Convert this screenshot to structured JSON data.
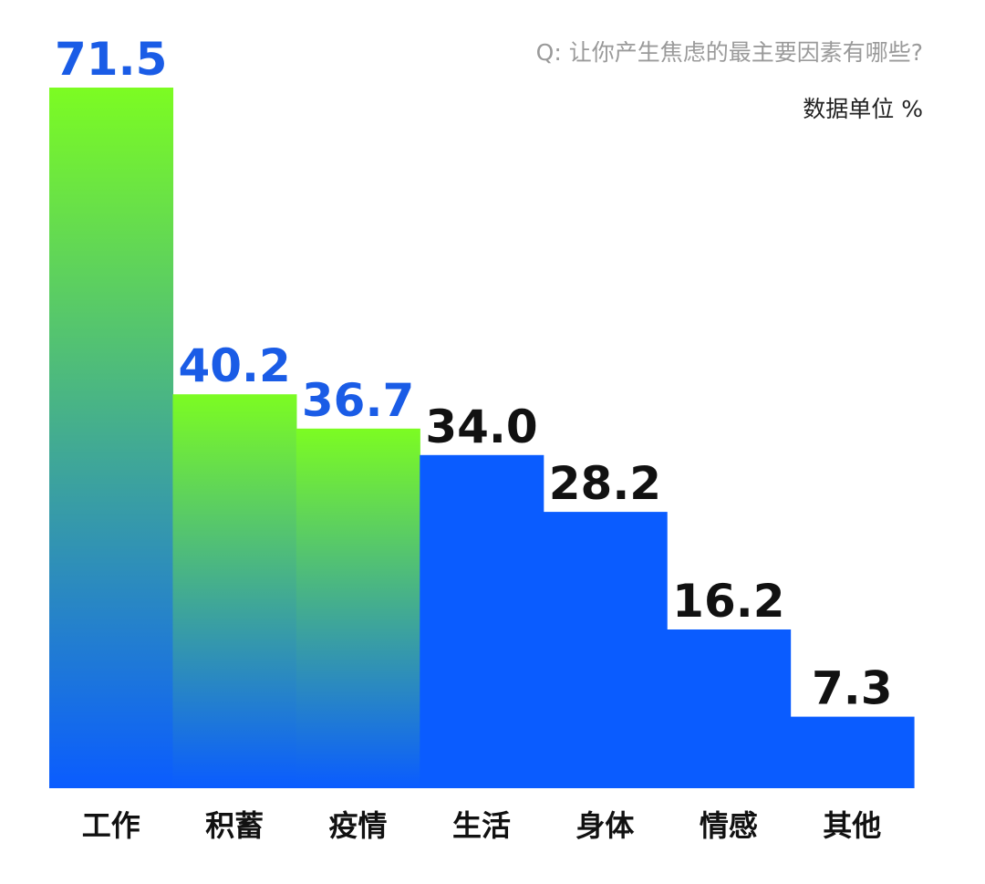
{
  "question": "Q: 让你产生焦虑的最主要因素有哪些?",
  "unit_label": "数据单位 %",
  "colors": {
    "gradient_top": "#7CFC22",
    "gradient_bottom": "#0A5CFF",
    "solid_bar": "#0A5CFF",
    "highlight_value": "#1A5CE6",
    "normal_value": "#111111",
    "category_text": "#111111"
  },
  "chart_data": {
    "type": "bar",
    "title": "",
    "subtitle": "Q: 让你产生焦虑的最主要因素有哪些?",
    "unit": "数据单位 %",
    "xlabel": "",
    "ylabel": "",
    "ylim": [
      0,
      71.5
    ],
    "grid": false,
    "legend": "none",
    "categories": [
      "工作",
      "积蓄",
      "疫情",
      "生活",
      "身体",
      "情感",
      "其他"
    ],
    "values": [
      71.5,
      40.2,
      36.7,
      34.0,
      28.2,
      16.2,
      7.3
    ],
    "value_labels": [
      "71.5",
      "40.2",
      "36.7",
      "34.0",
      "28.2",
      "16.2",
      "7.3"
    ],
    "highlighted": [
      true,
      true,
      true,
      false,
      false,
      false,
      false
    ]
  }
}
